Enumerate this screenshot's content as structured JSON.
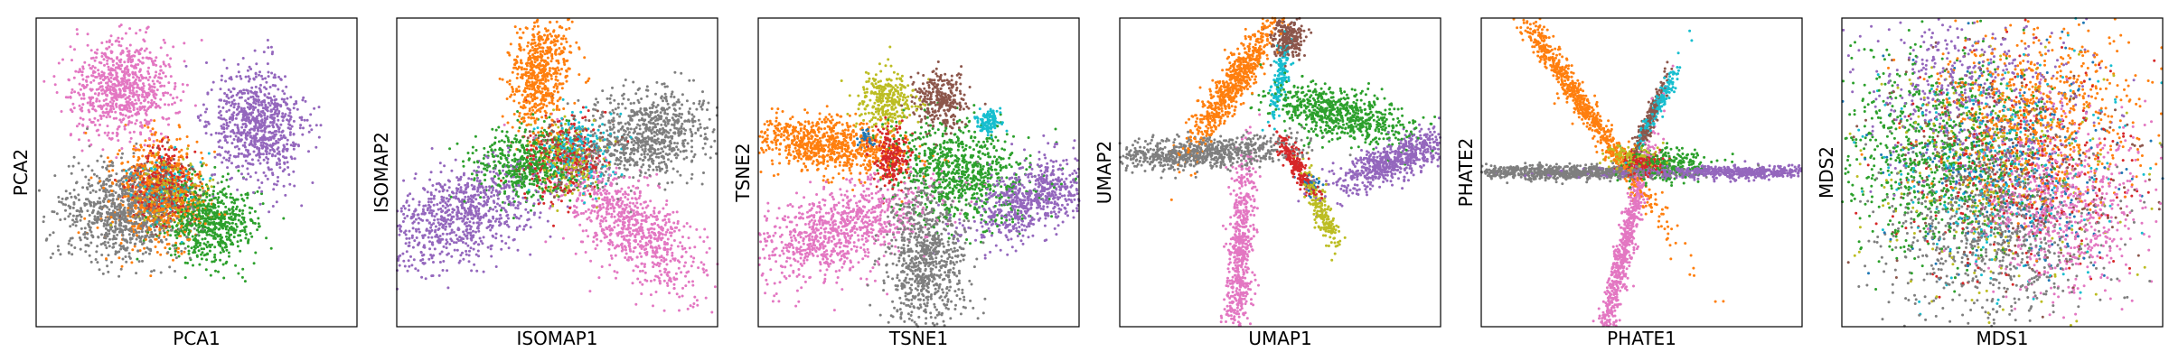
{
  "chart_data": [
    {
      "type": "scatter",
      "method": "pca",
      "xlabel": "PCA1",
      "ylabel": "PCA2",
      "xticks": [],
      "yticks": [],
      "xlim": [
        -10,
        10
      ],
      "ylim": [
        -10,
        10
      ],
      "series": [
        {
          "color": "#e377c2",
          "center": [
            -4.5,
            5.5
          ],
          "count": 800,
          "spread": [
            1.6,
            1.6
          ],
          "angle": 0
        },
        {
          "color": "#9467bd",
          "center": [
            3.8,
            3.0
          ],
          "count": 800,
          "spread": [
            1.4,
            1.8
          ],
          "angle": 20
        },
        {
          "color": "#7f7f7f",
          "center": [
            -4.5,
            -2.6
          ],
          "count": 900,
          "spread": [
            2.0,
            1.5
          ],
          "angle": 0
        },
        {
          "color": "#ff7f0e",
          "center": [
            -2.3,
            -1.4
          ],
          "count": 600,
          "spread": [
            1.4,
            1.7
          ],
          "angle": 0
        },
        {
          "color": "#d62728",
          "center": [
            -2.0,
            -0.8
          ],
          "count": 300,
          "spread": [
            1.0,
            1.2
          ],
          "angle": 0
        },
        {
          "color": "#2ca02c",
          "center": [
            0.8,
            -3.2
          ],
          "count": 650,
          "spread": [
            1.4,
            1.3
          ],
          "angle": 0
        },
        {
          "color": "#bcbd22",
          "center": [
            -1.8,
            -1.2
          ],
          "count": 200,
          "spread": [
            1.0,
            1.0
          ],
          "angle": 0
        },
        {
          "color": "#8c564b",
          "center": [
            -2.0,
            -1.0
          ],
          "count": 150,
          "spread": [
            1.0,
            1.0
          ],
          "angle": 0
        },
        {
          "color": "#17becf",
          "center": [
            -1.9,
            -1.1
          ],
          "count": 150,
          "spread": [
            1.0,
            1.0
          ],
          "angle": 0
        }
      ]
    },
    {
      "type": "scatter",
      "method": "isomap",
      "xlabel": "ISOMAP1",
      "ylabel": "ISOMAP2",
      "xticks": [],
      "yticks": [],
      "xlim": [
        -10,
        10
      ],
      "ylim": [
        -10,
        10
      ],
      "series": [
        {
          "color": "#ff7f0e",
          "center": [
            -1.0,
            6.5
          ],
          "count": 600,
          "spread": [
            0.9,
            2.0
          ],
          "angle": -8
        },
        {
          "color": "#7f7f7f",
          "center": [
            5.5,
            2.4
          ],
          "count": 800,
          "spread": [
            2.2,
            1.4
          ],
          "angle": 15
        },
        {
          "color": "#2ca02c",
          "center": [
            -2.0,
            0.5
          ],
          "count": 500,
          "spread": [
            1.6,
            1.2
          ],
          "angle": 0
        },
        {
          "color": "#9467bd",
          "center": [
            -6.0,
            -2.8
          ],
          "count": 800,
          "spread": [
            2.6,
            1.5
          ],
          "angle": 22
        },
        {
          "color": "#e377c2",
          "center": [
            4.6,
            -3.5
          ],
          "count": 800,
          "spread": [
            2.8,
            1.2
          ],
          "angle": -45
        },
        {
          "color": "#d62728",
          "center": [
            0.2,
            1.0
          ],
          "count": 250,
          "spread": [
            1.3,
            1.3
          ],
          "angle": 0
        },
        {
          "color": "#17becf",
          "center": [
            1.2,
            1.5
          ],
          "count": 200,
          "spread": [
            1.2,
            1.2
          ],
          "angle": 0
        },
        {
          "color": "#bcbd22",
          "center": [
            0.6,
            0.7
          ],
          "count": 200,
          "spread": [
            1.2,
            1.2
          ],
          "angle": 0
        },
        {
          "color": "#8c564b",
          "center": [
            1.0,
            1.3
          ],
          "count": 150,
          "spread": [
            1.2,
            1.2
          ],
          "angle": 0
        }
      ]
    },
    {
      "type": "scatter",
      "method": "tsne",
      "xlabel": "TSNE1",
      "ylabel": "TSNE2",
      "xticks": [],
      "yticks": [],
      "xlim": [
        -10,
        10
      ],
      "ylim": [
        -10,
        10
      ],
      "series": [
        {
          "color": "#ff7f0e",
          "center": [
            -5.7,
            1.8
          ],
          "count": 800,
          "spread": [
            2.4,
            0.9
          ],
          "angle": -5
        },
        {
          "color": "#e377c2",
          "center": [
            -5.0,
            -3.7
          ],
          "count": 900,
          "spread": [
            3.0,
            1.3
          ],
          "angle": 20
        },
        {
          "color": "#7f7f7f",
          "center": [
            0.5,
            -5.6
          ],
          "count": 800,
          "spread": [
            1.3,
            2.4
          ],
          "angle": 0
        },
        {
          "color": "#2ca02c",
          "center": [
            2.6,
            0.0
          ],
          "count": 800,
          "spread": [
            2.2,
            1.6
          ],
          "angle": -15
        },
        {
          "color": "#9467bd",
          "center": [
            7.2,
            -1.6
          ],
          "count": 700,
          "spread": [
            2.2,
            1.1
          ],
          "angle": 25
        },
        {
          "color": "#bcbd22",
          "center": [
            -2.0,
            4.7
          ],
          "count": 300,
          "spread": [
            0.9,
            0.9
          ],
          "angle": 0
        },
        {
          "color": "#8c564b",
          "center": [
            1.3,
            4.6
          ],
          "count": 300,
          "spread": [
            0.8,
            0.9
          ],
          "angle": 0
        },
        {
          "color": "#17becf",
          "center": [
            4.4,
            3.3
          ],
          "count": 120,
          "spread": [
            0.4,
            0.4
          ],
          "angle": 0
        },
        {
          "color": "#d62728",
          "center": [
            -1.8,
            1.0
          ],
          "count": 250,
          "spread": [
            0.6,
            0.9
          ],
          "angle": 0
        },
        {
          "color": "#1f77b4",
          "center": [
            -3.3,
            2.3
          ],
          "count": 40,
          "spread": [
            0.3,
            0.3
          ],
          "angle": 0
        }
      ]
    },
    {
      "type": "scatter",
      "method": "umap",
      "xlabel": "UMAP1",
      "ylabel": "UMAP2",
      "xticks": [],
      "yticks": [],
      "xlim": [
        -10,
        10
      ],
      "ylim": [
        -10,
        10
      ],
      "series": [
        {
          "color": "#7f7f7f",
          "center": [
            -5.0,
            1.2
          ],
          "count": 800,
          "spread": [
            3.1,
            0.5
          ],
          "angle": 3
        },
        {
          "color": "#ff7f0e",
          "center": [
            -2.8,
            5.9
          ],
          "count": 700,
          "spread": [
            2.6,
            0.5
          ],
          "angle": 58
        },
        {
          "color": "#e377c2",
          "center": [
            -2.5,
            -5.2
          ],
          "count": 600,
          "spread": [
            3.3,
            0.4
          ],
          "angle": 86
        },
        {
          "color": "#2ca02c",
          "center": [
            3.7,
            3.8
          ],
          "count": 700,
          "spread": [
            2.2,
            0.8
          ],
          "angle": -15
        },
        {
          "color": "#9467bd",
          "center": [
            7.2,
            0.8
          ],
          "count": 700,
          "spread": [
            2.0,
            0.6
          ],
          "angle": 25
        },
        {
          "color": "#8c564b",
          "center": [
            0.5,
            8.7
          ],
          "count": 250,
          "spread": [
            0.5,
            0.6
          ],
          "angle": 0
        },
        {
          "color": "#17becf",
          "center": [
            0.0,
            6.0
          ],
          "count": 150,
          "spread": [
            1.3,
            0.25
          ],
          "angle": 80
        },
        {
          "color": "#d62728",
          "center": [
            1.0,
            0.5
          ],
          "count": 200,
          "spread": [
            1.1,
            0.3
          ],
          "angle": -60
        },
        {
          "color": "#bcbd22",
          "center": [
            2.6,
            -2.5
          ],
          "count": 200,
          "spread": [
            1.3,
            0.3
          ],
          "angle": -70
        },
        {
          "color": "#1f77b4",
          "center": [
            2.0,
            -0.8
          ],
          "count": 30,
          "spread": [
            0.3,
            0.3
          ],
          "angle": 0
        }
      ]
    },
    {
      "type": "scatter",
      "method": "phate",
      "xlabel": "PHATE1",
      "ylabel": "PHATE2",
      "xticks": [],
      "yticks": [],
      "xlim": [
        -10,
        10
      ],
      "ylim": [
        -10,
        10
      ],
      "series": [
        {
          "color": "#ff7f0e",
          "center": [
            -3.8,
            4.6
          ],
          "count": 800,
          "spread": [
            4.8,
            0.35
          ],
          "angle": -57
        },
        {
          "color": "#9467bd",
          "center": [
            5.6,
            0.0
          ],
          "count": 800,
          "spread": [
            4.4,
            0.2
          ],
          "angle": 0
        },
        {
          "color": "#7f7f7f",
          "center": [
            -4.8,
            0.0
          ],
          "count": 800,
          "spread": [
            3.4,
            0.22
          ],
          "angle": 0
        },
        {
          "color": "#e377c2",
          "center": [
            -1.2,
            -5.4
          ],
          "count": 700,
          "spread": [
            4.0,
            0.3
          ],
          "angle": 77
        },
        {
          "color": "#2ca02c",
          "center": [
            1.5,
            0.5
          ],
          "count": 300,
          "spread": [
            1.3,
            0.5
          ],
          "angle": 0
        },
        {
          "color": "#8c564b",
          "center": [
            0.5,
            3.5
          ],
          "count": 200,
          "spread": [
            1.4,
            0.2
          ],
          "angle": 70
        },
        {
          "color": "#17becf",
          "center": [
            1.0,
            4.3
          ],
          "count": 200,
          "spread": [
            1.6,
            0.2
          ],
          "angle": 65
        },
        {
          "color": "#d62728",
          "center": [
            0.0,
            0.5
          ],
          "count": 200,
          "spread": [
            0.6,
            0.4
          ],
          "angle": 0
        },
        {
          "color": "#bcbd22",
          "center": [
            -0.5,
            1.0
          ],
          "count": 150,
          "spread": [
            0.8,
            0.4
          ],
          "angle": 0
        }
      ]
    },
    {
      "type": "scatter",
      "method": "mds",
      "xlabel": "MDS1",
      "ylabel": "MDS2",
      "xticks": [],
      "yticks": [],
      "xlim": [
        -10,
        10
      ],
      "ylim": [
        -10,
        10
      ],
      "series": [
        {
          "color": "#2ca02c",
          "center": [
            -4.0,
            1.0
          ],
          "count": 800,
          "spread": [
            3.2,
            3.2
          ],
          "angle": 0
        },
        {
          "color": "#7f7f7f",
          "center": [
            -0.8,
            -3.8
          ],
          "count": 800,
          "spread": [
            3.4,
            3.0
          ],
          "angle": 0
        },
        {
          "color": "#ff7f0e",
          "center": [
            2.3,
            3.8
          ],
          "count": 700,
          "spread": [
            3.2,
            3.0
          ],
          "angle": 0
        },
        {
          "color": "#e377c2",
          "center": [
            4.0,
            -2.0
          ],
          "count": 700,
          "spread": [
            2.6,
            2.8
          ],
          "angle": 0
        },
        {
          "color": "#9467bd",
          "center": [
            -2.0,
            5.0
          ],
          "count": 500,
          "spread": [
            3.4,
            2.8
          ],
          "angle": 0
        },
        {
          "color": "#1f77b4",
          "center": [
            0.0,
            0.0
          ],
          "count": 300,
          "spread": [
            3.8,
            3.8
          ],
          "angle": 0
        },
        {
          "color": "#d62728",
          "center": [
            0.5,
            0.5
          ],
          "count": 300,
          "spread": [
            3.8,
            3.8
          ],
          "angle": 0
        },
        {
          "color": "#bcbd22",
          "center": [
            -0.5,
            -0.5
          ],
          "count": 300,
          "spread": [
            3.8,
            3.8
          ],
          "angle": 0
        },
        {
          "color": "#8c564b",
          "center": [
            0.2,
            0.5
          ],
          "count": 300,
          "spread": [
            3.8,
            3.8
          ],
          "angle": 0
        },
        {
          "color": "#17becf",
          "center": [
            -0.3,
            0.2
          ],
          "count": 300,
          "spread": [
            3.8,
            3.8
          ],
          "angle": 0
        }
      ]
    }
  ]
}
